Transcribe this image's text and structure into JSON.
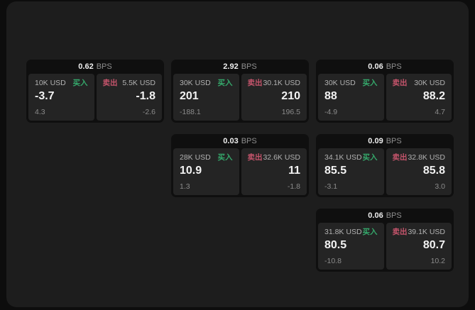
{
  "colors": {
    "buy": "#35a86b",
    "sell": "#c4546b",
    "panel_bg": "#1d1d1d",
    "card_bg": "#0f0f0f",
    "tile_bg": "#242424"
  },
  "labels": {
    "bps_unit": "BPS",
    "buy": "买入",
    "sell": "卖出"
  },
  "cards": [
    {
      "col": 1,
      "row": 1,
      "bps": "0.62",
      "buy": {
        "size": "10K USD",
        "value": "-3.7",
        "delta": "4.3"
      },
      "sell": {
        "size": "5.5K USD",
        "value": "-1.8",
        "delta": "-2.6"
      }
    },
    {
      "col": 2,
      "row": 1,
      "bps": "2.92",
      "buy": {
        "size": "30K USD",
        "value": "201",
        "delta": "-188.1"
      },
      "sell": {
        "size": "30.1K USD",
        "value": "210",
        "delta": "196.5"
      }
    },
    {
      "col": 3,
      "row": 1,
      "bps": "0.06",
      "buy": {
        "size": "30K USD",
        "value": "88",
        "delta": "-4.9"
      },
      "sell": {
        "size": "30K USD",
        "value": "88.2",
        "delta": "4.7"
      }
    },
    {
      "col": 2,
      "row": 2,
      "bps": "0.03",
      "buy": {
        "size": "28K USD",
        "value": "10.9",
        "delta": "1.3"
      },
      "sell": {
        "size": "32.6K USD",
        "value": "11",
        "delta": "-1.8"
      }
    },
    {
      "col": 3,
      "row": 2,
      "bps": "0.09",
      "buy": {
        "size": "34.1K USD",
        "value": "85.5",
        "delta": "-3.1"
      },
      "sell": {
        "size": "32.8K USD",
        "value": "85.8",
        "delta": "3.0"
      }
    },
    {
      "col": 3,
      "row": 3,
      "bps": "0.06",
      "buy": {
        "size": "31.8K USD",
        "value": "80.5",
        "delta": "-10.8"
      },
      "sell": {
        "size": "39.1K USD",
        "value": "80.7",
        "delta": "10.2"
      }
    }
  ]
}
